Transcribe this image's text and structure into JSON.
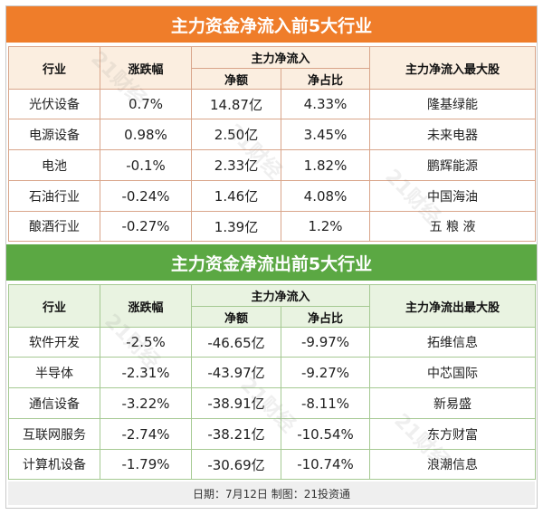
{
  "inflow": {
    "title": "主力资金净流入前5大行业",
    "headers": {
      "industry": "行业",
      "change": "涨跌幅",
      "group": "主力净流入",
      "amount": "净额",
      "ratio": "净占比",
      "top_stock": "主力净流入最大股"
    },
    "rows": [
      {
        "industry": "光伏设备",
        "change": "0.7%",
        "amount": "14.87亿",
        "ratio": "4.33%",
        "stock": "隆基绿能"
      },
      {
        "industry": "电源设备",
        "change": "0.98%",
        "amount": "2.50亿",
        "ratio": "3.45%",
        "stock": "未来电器"
      },
      {
        "industry": "电池",
        "change": "-0.1%",
        "amount": "2.33亿",
        "ratio": "1.82%",
        "stock": "鹏辉能源"
      },
      {
        "industry": "石油行业",
        "change": "-0.24%",
        "amount": "1.46亿",
        "ratio": "4.08%",
        "stock": "中国海油"
      },
      {
        "industry": "酿酒行业",
        "change": "-0.27%",
        "amount": "1.39亿",
        "ratio": "1.2%",
        "stock": "五 粮 液"
      }
    ]
  },
  "outflow": {
    "title": "主力资金净流出前5大行业",
    "headers": {
      "industry": "行业",
      "change": "涨跌幅",
      "group": "主力净流入",
      "amount": "净额",
      "ratio": "净占比",
      "top_stock": "主力净流出最大股"
    },
    "rows": [
      {
        "industry": "软件开发",
        "change": "-2.5%",
        "amount": "-46.65亿",
        "ratio": "-9.97%",
        "stock": "拓维信息"
      },
      {
        "industry": "半导体",
        "change": "-2.31%",
        "amount": "-43.97亿",
        "ratio": "-9.27%",
        "stock": "中芯国际"
      },
      {
        "industry": "通信设备",
        "change": "-3.22%",
        "amount": "-38.91亿",
        "ratio": "-8.11%",
        "stock": "新易盛"
      },
      {
        "industry": "互联网服务",
        "change": "-2.74%",
        "amount": "-38.21亿",
        "ratio": "-10.54%",
        "stock": "东方财富"
      },
      {
        "industry": "计算机设备",
        "change": "-1.79%",
        "amount": "-30.69亿",
        "ratio": "-10.74%",
        "stock": "浪潮信息"
      }
    ]
  },
  "footer": "日期：7月12日 制图：21投资通",
  "watermark": "21财经",
  "colors": {
    "inflow_banner": "#ef7d2a",
    "outflow_banner": "#5ba843"
  }
}
